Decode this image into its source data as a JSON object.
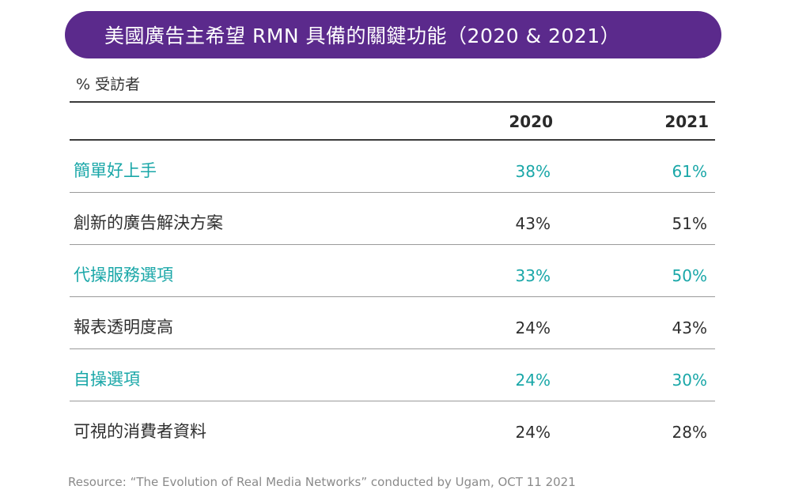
{
  "chart_data": {
    "type": "table",
    "title": "美國廣告主希望 RMN 具備的關鍵功能（2020 & 2021）",
    "unit_label": "% 受訪者",
    "columns": [
      "2020",
      "2021"
    ],
    "rows": [
      {
        "label": "簡單好上手",
        "values": [
          "38%",
          "61%"
        ],
        "highlight": true
      },
      {
        "label": "創新的廣告解決方案",
        "values": [
          "43%",
          "51%"
        ],
        "highlight": false
      },
      {
        "label": "代操服務選項",
        "values": [
          "33%",
          "50%"
        ],
        "highlight": true
      },
      {
        "label": "報表透明度高",
        "values": [
          "24%",
          "43%"
        ],
        "highlight": false
      },
      {
        "label": "自操選項",
        "values": [
          "24%",
          "30%"
        ],
        "highlight": true
      },
      {
        "label": "可視的消費者資料",
        "values": [
          "24%",
          "28%"
        ],
        "highlight": false
      }
    ],
    "source": "Resource: “The Evolution of Real Media Networks” conducted by Ugam, OCT 11 2021"
  },
  "colors": {
    "title_bar": "#5b2a8c",
    "highlight_text": "#1aa7a8",
    "body_text": "#2f2f2f",
    "source_text": "#8a8a8a"
  }
}
